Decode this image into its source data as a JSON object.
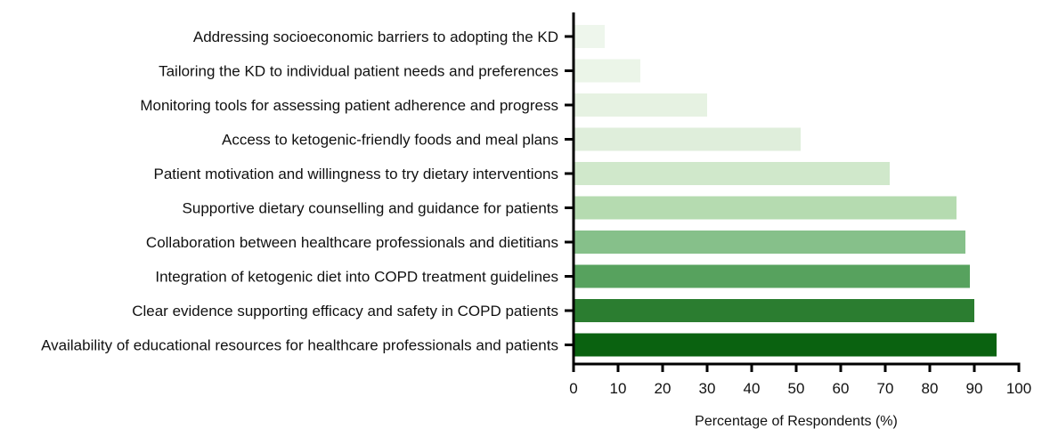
{
  "chart_data": {
    "type": "bar",
    "orientation": "horizontal",
    "categories": [
      "Addressing socioeconomic barriers to adopting the KD",
      "Tailoring the KD to individual patient needs and preferences",
      "Monitoring tools for assessing patient adherence and progress",
      "Access to ketogenic-friendly foods and meal plans",
      "Patient motivation and willingness to try dietary interventions",
      "Supportive dietary counselling and guidance for patients",
      "Collaboration between healthcare professionals and dietitians",
      "Integration of ketogenic diet into COPD treatment guidelines",
      "Clear evidence supporting efficacy and safety in COPD patients",
      "Availability of educational resources for healthcare professionals and patients"
    ],
    "values": [
      7,
      15,
      30,
      51,
      71,
      86,
      88,
      89,
      90,
      95
    ],
    "colors": [
      "#eef6ec",
      "#ebf5e8",
      "#e6f2e2",
      "#dfeedb",
      "#d0e8cb",
      "#b5dbb0",
      "#86c08a",
      "#57a25e",
      "#2b7d30",
      "#0a6210"
    ],
    "xlabel": "Percentage of Respondents (%)",
    "ylabel": "",
    "title": "",
    "xlim": [
      0,
      100
    ],
    "xticks": [
      "0",
      "10",
      "20",
      "30",
      "40",
      "50",
      "60",
      "70",
      "80",
      "90",
      "100"
    ],
    "grid": false,
    "legend": "none"
  }
}
